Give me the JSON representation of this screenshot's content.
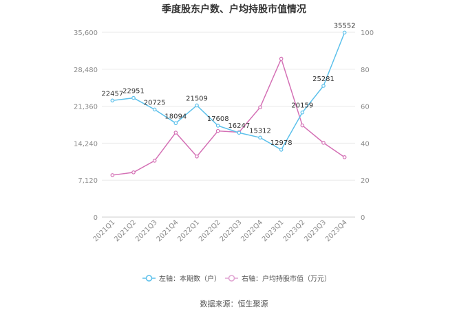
{
  "chart_data": {
    "type": "line",
    "title": "季度股东户数、户均持股市值情况",
    "categories": [
      "2021Q1",
      "2021Q2",
      "2021Q3",
      "2021Q4",
      "2022Q1",
      "2022Q2",
      "2022Q3",
      "2022Q4",
      "2023Q1",
      "2023Q2",
      "2023Q3",
      "2023Q4"
    ],
    "left_axis": {
      "min": 0,
      "max": 35600,
      "ticks": [
        0,
        7120,
        14240,
        21360,
        28480,
        35600
      ],
      "tick_labels": [
        "0",
        "7,120",
        "14,240",
        "21,360",
        "28,480",
        "35,600"
      ]
    },
    "right_axis": {
      "min": 0,
      "max": 100,
      "ticks": [
        0,
        20,
        40,
        60,
        80,
        100
      ],
      "tick_labels": [
        "0",
        "20",
        "40",
        "60",
        "80",
        "100"
      ]
    },
    "series": [
      {
        "name": "左轴：本期数（户）",
        "axis": "left",
        "color": "#5bc0eb",
        "values": [
          22457,
          22951,
          20725,
          18094,
          21509,
          17608,
          16247,
          15312,
          12978,
          20159,
          25281,
          35552
        ],
        "labels": [
          "22457",
          "22951",
          "20725",
          "18094",
          "21509",
          "17608",
          "16247",
          "15312",
          "12978",
          "20159",
          "25281",
          "35552"
        ]
      },
      {
        "name": "右轴：户均持股市值（万元）",
        "axis": "right",
        "color": "#d470b5",
        "values": [
          22.7,
          24.2,
          30.5,
          45.7,
          32.8,
          46.6,
          45.9,
          59.4,
          85.7,
          49.6,
          40.2,
          32.4
        ]
      }
    ],
    "legend_position": "bottom",
    "grid": true
  },
  "source": "数据来源：恒生聚源"
}
